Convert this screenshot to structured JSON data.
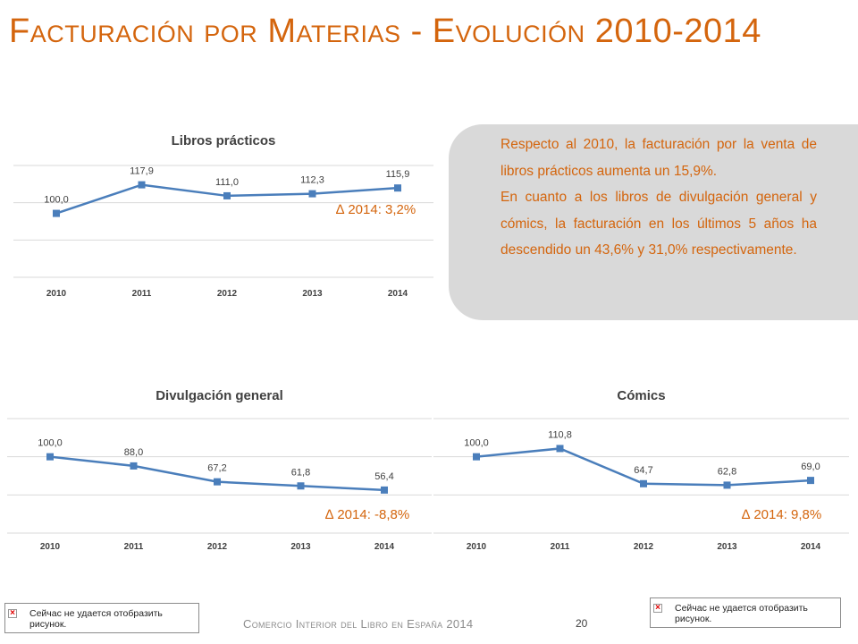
{
  "slide": {
    "title": "Facturación por Materias - Evolución 2010-2014",
    "footer": "Comercio Interior del Libro en España 2014",
    "page_number": "20",
    "broken_image_text": "Сейчас не удается отобразить рисунок.",
    "colors": {
      "accent": "#d4650d",
      "series": "#4a7ebb",
      "grid": "#d9d9d9",
      "box": "#d9d9d9"
    }
  },
  "info_box": {
    "paragraph1": "Respecto al 2010, la facturación por la venta de libros prácticos aumenta un 15,9%.",
    "paragraph2": "En cuanto a los libros de divulgación general y cómics, la facturación en los últimos 5 años ha descendido un 43,6% y 31,0% respectivamente."
  },
  "chart_data": [
    {
      "type": "line",
      "title": "Libros prácticos",
      "categories": [
        "2010",
        "2011",
        "2012",
        "2013",
        "2014"
      ],
      "values": [
        100.0,
        117.9,
        111.0,
        112.3,
        115.9
      ],
      "value_labels": [
        "100,0",
        "117,9",
        "111,0",
        "112,3",
        "115,9"
      ],
      "delta_label": "∆ 2014: 3,2%",
      "ylim": [
        60,
        130
      ],
      "grid": true
    },
    {
      "type": "line",
      "title": "Divulgación general",
      "categories": [
        "2010",
        "2011",
        "2012",
        "2013",
        "2014"
      ],
      "values": [
        100.0,
        88.0,
        67.2,
        61.8,
        56.4
      ],
      "value_labels": [
        "100,0",
        "88,0",
        "67,2",
        "61,8",
        "56,4"
      ],
      "delta_label": "∆ 2014: -8,8%",
      "ylim": [
        0,
        150
      ],
      "grid": true
    },
    {
      "type": "line",
      "title": "Cómics",
      "categories": [
        "2010",
        "2011",
        "2012",
        "2013",
        "2014"
      ],
      "values": [
        100.0,
        110.8,
        64.7,
        62.8,
        69.0
      ],
      "value_labels": [
        "100,0",
        "110,8",
        "64,7",
        "62,8",
        "69,0"
      ],
      "delta_label": "∆ 2014: 9,8%",
      "ylim": [
        0,
        150
      ],
      "grid": true
    }
  ]
}
